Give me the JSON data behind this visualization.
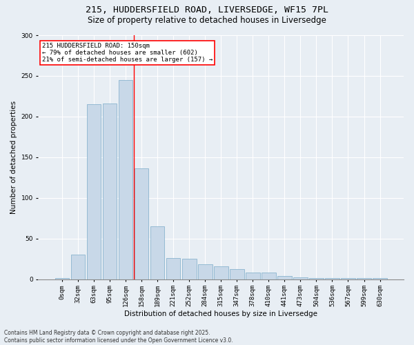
{
  "title_line1": "215, HUDDERSFIELD ROAD, LIVERSEDGE, WF15 7PL",
  "title_line2": "Size of property relative to detached houses in Liversedge",
  "xlabel": "Distribution of detached houses by size in Liversedge",
  "ylabel": "Number of detached properties",
  "categories": [
    "0sqm",
    "32sqm",
    "63sqm",
    "95sqm",
    "126sqm",
    "158sqm",
    "189sqm",
    "221sqm",
    "252sqm",
    "284sqm",
    "315sqm",
    "347sqm",
    "378sqm",
    "410sqm",
    "441sqm",
    "473sqm",
    "504sqm",
    "536sqm",
    "567sqm",
    "599sqm",
    "630sqm"
  ],
  "values": [
    1,
    30,
    215,
    216,
    245,
    136,
    65,
    26,
    25,
    18,
    16,
    12,
    8,
    8,
    4,
    2,
    1,
    1,
    1,
    1,
    1
  ],
  "bar_color": "#c8d8e8",
  "bar_edge_color": "#7aaac8",
  "vline_x": 4.5,
  "vline_color": "red",
  "annotation_text": "215 HUDDERSFIELD ROAD: 150sqm\n← 79% of detached houses are smaller (602)\n21% of semi-detached houses are larger (157) →",
  "annotation_box_color": "red",
  "annotation_fill": "white",
  "ylim": [
    0,
    300
  ],
  "yticks": [
    0,
    50,
    100,
    150,
    200,
    250,
    300
  ],
  "background_color": "#e8eef4",
  "footer_line1": "Contains HM Land Registry data © Crown copyright and database right 2025.",
  "footer_line2": "Contains public sector information licensed under the Open Government Licence v3.0.",
  "title_fontsize": 9.5,
  "subtitle_fontsize": 8.5,
  "label_fontsize": 7.5,
  "tick_fontsize": 6.5,
  "annotation_fontsize": 6.5,
  "footer_fontsize": 5.5
}
